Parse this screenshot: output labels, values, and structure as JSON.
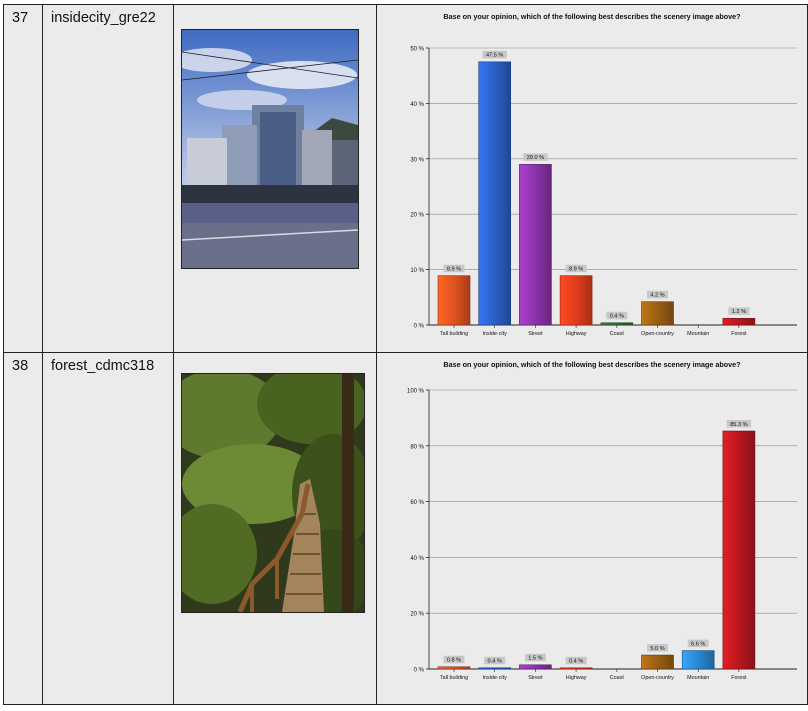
{
  "rows": [
    {
      "number": "37",
      "name": "insidecity_gre22"
    },
    {
      "number": "38",
      "name": "forest_cdmc318"
    }
  ],
  "colors": {
    "Tall building": "#e0521f",
    "Inside-city": "#2b5fc4",
    "Street": "#8a33a8",
    "Highway": "#e03c1c",
    "Coast": "#2f6b2f",
    "Open-country": "#9a5e12",
    "Mountain": "#2a86d0",
    "Forest": "#b8171e"
  },
  "chart_data": [
    {
      "type": "bar",
      "title": "Base on your opinion, which of the following best describes the scenery image above?",
      "categories": [
        "Tall building",
        "Inside-city",
        "Street",
        "Highway",
        "Coast",
        "Open-country",
        "Mountain",
        "Forest"
      ],
      "values": [
        8.9,
        47.5,
        29.0,
        8.9,
        0.4,
        4.2,
        0.0,
        1.2
      ],
      "data_labels": [
        "8.9 %",
        "47.5 %",
        "29.0 %",
        "8.9 %",
        "0.4 %",
        "4.2 %",
        "",
        "1.2 %"
      ],
      "ylim": [
        0,
        50
      ],
      "yticks": [
        "0 %",
        "10 %",
        "20 %",
        "30 %",
        "40 %",
        "50 %"
      ],
      "grid": true
    },
    {
      "type": "bar",
      "title": "Base on your opinion, which of the following best describes the scenery image above?",
      "categories": [
        "Tall building",
        "Inside-city",
        "Street",
        "Highway",
        "Coast",
        "Open-country",
        "Mountain",
        "Forest"
      ],
      "values": [
        0.8,
        0.4,
        1.5,
        0.4,
        0.0,
        5.0,
        6.6,
        85.3
      ],
      "data_labels": [
        "0.8 %",
        "0.4 %",
        "1.5 %",
        "0.4 %",
        "",
        "5.0 %",
        "6.6 %",
        "85.3 %"
      ],
      "ylim": [
        0,
        100
      ],
      "yticks": [
        "0 %",
        "20 %",
        "40 %",
        "60 %",
        "80 %",
        "100 %"
      ],
      "grid": true
    }
  ]
}
